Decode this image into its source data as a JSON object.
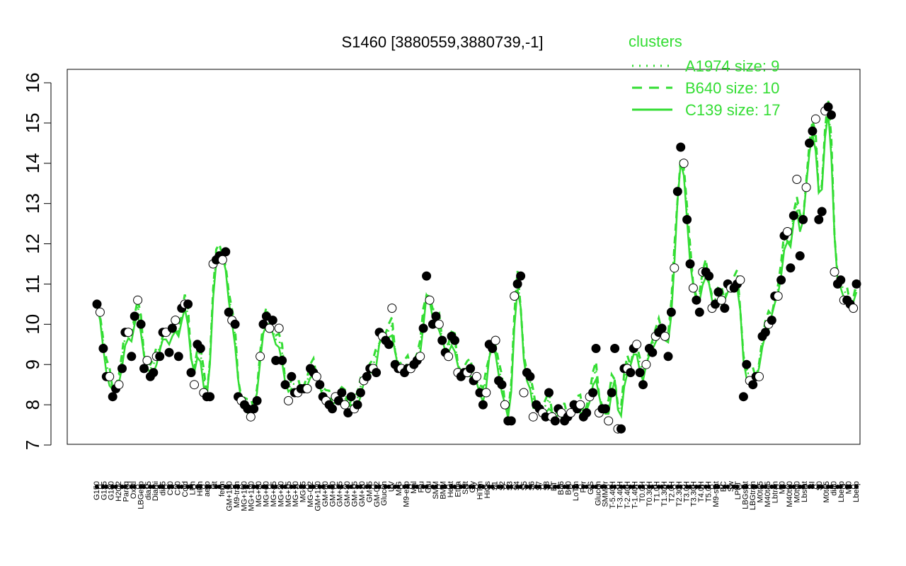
{
  "chart_data": {
    "type": "line",
    "title": "S1460 [3880559,3880739,-1]",
    "ylim": [
      7,
      16
    ],
    "yticks": [
      7,
      8,
      9,
      10,
      11,
      12,
      13,
      14,
      15,
      16
    ],
    "legend": {
      "title": "clusters",
      "placement": "top-right",
      "entries": [
        {
          "label": "A1974 size: 9",
          "style": "dotted"
        },
        {
          "label": "B640 size: 10",
          "style": "dashed"
        },
        {
          "label": "C139 size: 17",
          "style": "solid"
        }
      ]
    },
    "colors": {
      "line": "#33dd33",
      "point_edge": "#000000",
      "point_open": "#ffffff",
      "point_filled": "#000000"
    },
    "xlabels": [
      "G150",
      "G135",
      "G180",
      "H2O2",
      "Paraq",
      "Oxctl",
      "LBGexp",
      "dia15",
      "Diami",
      "dia5",
      "C90",
      "C30",
      "Cold",
      "LPh",
      "HPh",
      "aero",
      "nit",
      "ferm",
      "GM+150",
      "M9-tran",
      "MG+150",
      "MG+120",
      "MG+90",
      "MG+60",
      "MG+45",
      "MG+30",
      "MG+15",
      "MG+10",
      "MG+5",
      "MG-0.2",
      "GM+120",
      "GM+90",
      "GM+60",
      "GM+45",
      "GM+30",
      "GM+15",
      "GM+10",
      "GM+5",
      "GM-0.2",
      "Glucon",
      "UV",
      "M/G",
      "M9-exp",
      "Mal",
      "Fru",
      "Glu",
      "SMM",
      "BMM",
      "Heat",
      "Etha",
      "Salt",
      "Gly",
      "HiTm",
      "HiOs",
      "S1",
      "S2",
      "S3",
      "S4",
      "S5",
      "S6",
      "S7",
      "S8",
      "BT",
      "B36",
      "B60",
      "LoTm",
      "Pyr",
      "G/S",
      "Glucon",
      "SMMPr",
      "T-5.40H",
      "T-3.40H",
      "T-2.40H",
      "T-1.40H",
      "T0.0H",
      "T0.30H",
      "T1.0H",
      "T1.30H",
      "T2.0H",
      "T2.30H",
      "T3.0H",
      "T3.30H",
      "T4.0H",
      "T5.0H",
      "M9-stat",
      "BC",
      "Sw",
      "LPhT",
      "LBGstat",
      "LBGtran",
      "M0t45",
      "M40t45",
      "Lbtran",
      "Mt0",
      "M40t90",
      "M0t90",
      "Lbstat",
      "BI",
      "S0",
      "M0t45",
      "dia0",
      "Lbexp",
      "Mt0",
      "Lbexp"
    ],
    "series": [
      {
        "style": "points",
        "values": [
          10.5,
          10.3,
          9.4,
          8.7,
          8.7,
          8.2,
          8.4,
          8.5,
          8.9,
          9.8,
          9.8,
          9.2,
          10.2,
          10.6,
          10.0,
          8.9,
          9.1,
          8.7,
          8.8,
          9.2,
          9.2,
          9.8,
          9.8,
          9.3,
          9.9,
          10.1,
          9.2,
          10.4,
          10.5,
          10.5,
          8.8,
          8.5,
          9.5,
          9.4,
          8.3,
          8.2,
          8.2,
          11.5,
          11.6,
          11.7,
          11.6,
          11.8,
          10.3,
          10.1,
          10.0,
          8.2,
          8.1,
          8.0,
          7.9,
          7.7,
          7.9,
          8.1,
          9.2,
          10.0,
          10.2,
          9.9,
          10.1,
          9.1,
          9.9,
          9.1,
          8.5,
          8.1,
          8.7,
          8.3,
          8.3,
          8.4,
          8.4,
          8.4,
          8.9,
          8.8,
          8.7,
          8.5,
          8.2,
          8.1,
          8.0,
          7.9,
          8.2,
          8.1,
          8.3,
          8.0,
          7.8,
          8.2,
          7.9,
          8.0,
          8.3,
          8.6,
          8.7,
          8.9,
          8.9,
          8.8,
          9.8,
          9.7,
          9.6,
          9.5,
          10.4,
          9.0,
          8.9,
          8.9,
          8.8,
          8.9,
          8.9,
          9.0,
          9.1,
          9.2,
          9.9,
          11.2,
          10.6,
          10.0,
          10.2,
          10.0,
          9.6,
          9.3,
          9.2,
          9.7,
          9.6,
          8.8,
          8.7,
          8.8,
          8.8,
          8.9,
          8.6,
          8.7,
          8.3,
          8.0,
          8.3,
          9.5,
          9.4,
          9.6,
          8.6,
          8.5,
          8.0,
          7.6,
          7.6,
          10.7,
          11.0,
          11.2,
          8.3,
          8.8,
          8.7,
          7.7,
          8.0,
          7.9,
          7.8,
          7.7,
          8.3,
          7.7,
          7.6,
          7.9,
          7.8,
          7.6,
          7.7,
          7.8,
          8.0,
          7.9,
          8.0,
          7.7,
          7.8,
          8.2,
          8.3,
          9.4,
          7.8,
          7.9,
          7.9,
          7.6,
          8.3,
          9.4,
          7.4,
          7.4,
          8.9,
          8.9,
          8.8,
          9.4,
          9.5,
          8.8,
          8.5,
          9.0,
          9.4,
          9.3,
          9.7,
          9.8,
          9.9,
          9.7,
          9.2,
          10.3,
          11.4,
          13.3,
          14.4,
          14.0,
          12.6,
          11.5,
          10.9,
          10.6,
          10.3,
          11.3,
          11.3,
          11.2,
          10.4,
          10.5,
          10.8,
          10.6,
          10.4,
          11.0,
          10.9,
          10.9,
          11.0,
          11.1,
          8.2,
          9.0,
          8.6,
          8.5,
          8.7,
          8.7,
          9.7,
          9.8,
          10.0,
          10.1,
          10.7,
          10.7,
          11.1,
          12.2,
          12.3,
          11.4,
          12.7,
          13.6,
          11.7,
          12.6,
          13.4,
          14.5,
          14.8,
          15.1,
          12.6,
          12.8,
          15.3,
          15.4,
          15.2,
          11.3,
          11.0,
          11.1,
          10.6,
          10.6,
          10.5,
          10.4,
          11.0
        ]
      }
    ]
  }
}
